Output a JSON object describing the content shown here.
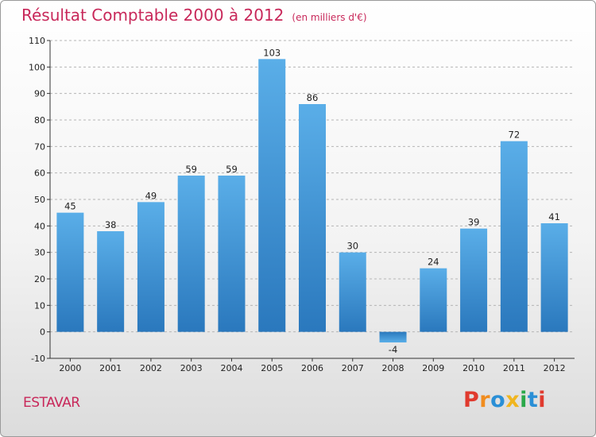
{
  "header": {
    "title": "Résultat Comptable 2000 à 2012",
    "unit": "(en milliers d'€)"
  },
  "footer": {
    "commune": "ESTAVAR",
    "logo_text": "Proxiti"
  },
  "colors": {
    "title": "#c8285a",
    "bar_light": "#5aaee8",
    "bar_dark": "#2a78bd",
    "logo": [
      "#e03a2e",
      "#f08c1e",
      "#2a8fd6",
      "#f0b51e",
      "#2aa84a",
      "#2a8fd6",
      "#e03a2e"
    ]
  },
  "chart_data": {
    "type": "bar",
    "title": "Résultat Comptable 2000 à 2012",
    "subtitle": "(en milliers d'€)",
    "xlabel": "",
    "ylabel": "",
    "categories": [
      "2000",
      "2001",
      "2002",
      "2003",
      "2004",
      "2005",
      "2006",
      "2007",
      "2008",
      "2009",
      "2010",
      "2011",
      "2012"
    ],
    "values": [
      45,
      38,
      49,
      59,
      59,
      103,
      86,
      30,
      -4,
      24,
      39,
      72,
      41
    ],
    "data_labels": [
      "45",
      "38",
      "49",
      "59",
      "59",
      "103",
      "86",
      "30",
      "-4",
      "24",
      "39",
      "72",
      "41"
    ],
    "ylim": [
      -10,
      110
    ],
    "yticks": [
      -10,
      0,
      10,
      20,
      30,
      40,
      50,
      60,
      70,
      80,
      90,
      100,
      110
    ],
    "grid": "horizontal dashed",
    "legend": "none"
  }
}
